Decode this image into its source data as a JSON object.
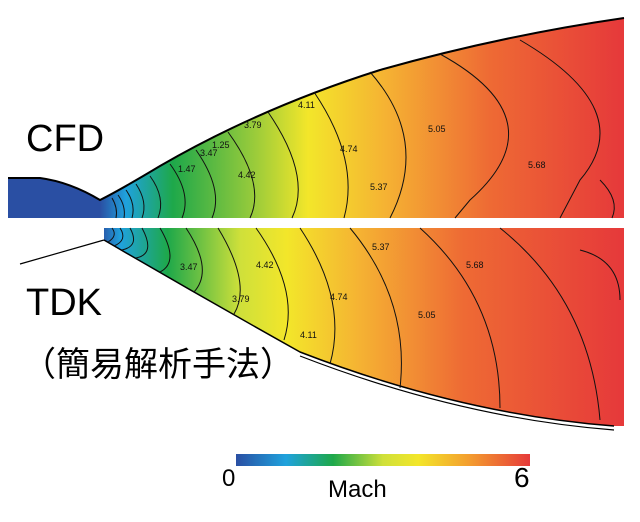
{
  "labels": {
    "cfd": "CFD",
    "tdk": "TDK",
    "method": "（簡易解析手法）"
  },
  "colorbar": {
    "title": "Mach",
    "min_label": "0",
    "max_label": "6",
    "stops": [
      "#2a4fa3",
      "#1fa2dd",
      "#1ea84a",
      "#cfe03a",
      "#f3e62a",
      "#f39a2f",
      "#e63a3a"
    ]
  },
  "contours": {
    "cfd_labels": [
      "4.11",
      "4.74",
      "5.05",
      "5.37",
      "5.68",
      "4.42",
      "3.79",
      "1.47",
      "1.25",
      "3.47"
    ],
    "tdk_labels": [
      "5.37",
      "5.68",
      "5.05",
      "4.74",
      "4.42",
      "3.79",
      "3.47",
      "4.11"
    ]
  }
}
